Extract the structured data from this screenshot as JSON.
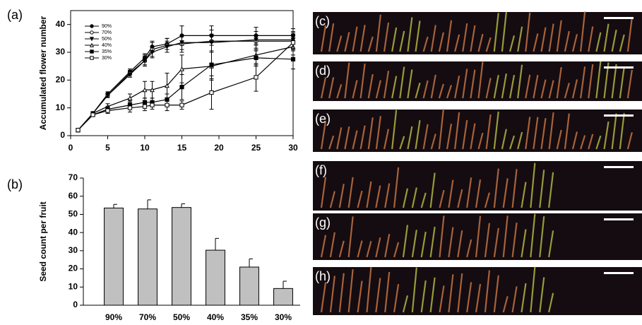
{
  "chart_data": [
    {
      "type": "line",
      "panel_label": "(a)",
      "y_label": "Accumulated flower number",
      "x": [
        1,
        3,
        5,
        8,
        10,
        11,
        13,
        15,
        19,
        25,
        30
      ],
      "xlim": [
        0,
        30
      ],
      "xticks": [
        0,
        5,
        10,
        15,
        20,
        25,
        30
      ],
      "ylim": [
        0,
        45
      ],
      "yticks": [
        0,
        10,
        20,
        30,
        40
      ],
      "legend": "upper left",
      "series": [
        {
          "name": "90%",
          "color": "#000000",
          "marker": "filled-circle",
          "values": [
            2,
            8,
            15,
            23,
            28,
            32,
            33,
            36,
            36,
            36,
            36
          ],
          "errors": [
            0.3,
            0.5,
            0.8,
            1,
            1.5,
            2,
            2,
            3.5,
            3.5,
            3,
            2.5
          ]
        },
        {
          "name": "70%",
          "color": "#000000",
          "marker": "open-circle",
          "values": [
            2,
            8,
            14.5,
            22.5,
            27,
            31,
            32.5,
            33,
            34,
            34,
            34
          ],
          "errors": [
            0.3,
            0.5,
            0.8,
            1,
            2,
            2.5,
            2.5,
            3,
            4,
            3.5,
            3
          ]
        },
        {
          "name": "50%",
          "color": "#000000",
          "marker": "filled-triangle-down",
          "values": [
            2,
            8,
            14.5,
            22,
            27,
            30,
            32,
            33.5,
            33.5,
            34.5,
            34.5
          ],
          "errors": [
            0.3,
            0.5,
            0.8,
            1,
            1.5,
            2,
            2,
            2.5,
            3,
            3,
            3
          ]
        },
        {
          "name": "40%",
          "color": "#000000",
          "marker": "open-triangle-up",
          "values": [
            2,
            8,
            10.5,
            13.5,
            16.5,
            16.5,
            18,
            24,
            25,
            29,
            32
          ],
          "errors": [
            0.3,
            0.5,
            1,
            1.5,
            3,
            3,
            4.5,
            5,
            5,
            3.5,
            3
          ]
        },
        {
          "name": "35%",
          "color": "#000000",
          "marker": "filled-square",
          "values": [
            2,
            7.5,
            9.5,
            11,
            12,
            12,
            13,
            17.5,
            25.5,
            28,
            27.5
          ],
          "errors": [
            0.3,
            0.5,
            1,
            1.5,
            1.5,
            1.5,
            2,
            4.5,
            5,
            3,
            3.5
          ]
        },
        {
          "name": "30%",
          "color": "#000000",
          "marker": "open-square",
          "values": [
            2,
            7.5,
            9,
            10,
            10.5,
            11,
            11,
            11,
            15.5,
            21,
            33.5
          ],
          "errors": [
            0.3,
            0.5,
            1,
            1.5,
            1.5,
            1.5,
            2,
            1.5,
            6,
            5,
            3
          ]
        }
      ]
    },
    {
      "type": "bar",
      "panel_label": "(b)",
      "y_label": "Seed count per fruit",
      "categories": [
        "90%",
        "70%",
        "50%",
        "40%",
        "35%",
        "30%"
      ],
      "values": [
        53.5,
        53,
        53.8,
        30.3,
        21,
        9.2
      ],
      "errors": [
        2,
        5,
        2,
        6.5,
        4.5,
        4
      ],
      "color": "#c0c0c0",
      "ylim": [
        0,
        70
      ],
      "yticks": [
        0,
        10,
        20,
        30,
        40,
        50,
        60,
        70
      ]
    }
  ],
  "photo_panels": [
    {
      "label": "(c)"
    },
    {
      "label": "(d)"
    },
    {
      "label": "(e)"
    },
    {
      "label": "(f)"
    },
    {
      "label": "(g)"
    },
    {
      "label": "(h)"
    }
  ]
}
